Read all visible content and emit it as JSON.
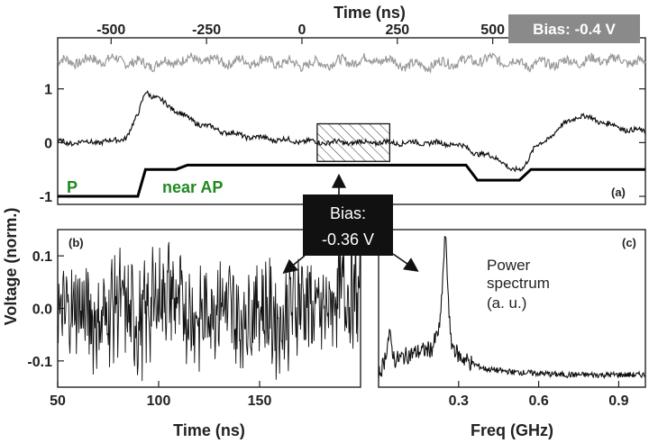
{
  "chart_data": [
    {
      "panel": "(a)",
      "type": "line",
      "xlabel": "Time (ns)",
      "ylabel": "Voltage (norm.)",
      "xlim": [
        -640,
        900
      ],
      "ylim": [
        -1.15,
        1.95
      ],
      "x_ticks": [
        -500,
        -250,
        0,
        250,
        500
      ],
      "y_ticks": [
        1,
        0,
        -1
      ],
      "badge": "Bias: -0.4 V",
      "badge_color": "#8a8a8a",
      "labels": {
        "p": "P",
        "near_ap": "near AP",
        "color": "#1f8a1f"
      },
      "series": [
        {
          "color": "#999999",
          "x": [
            -640,
            -500,
            -400,
            -300,
            -200,
            -100,
            0,
            100,
            200,
            300,
            400,
            500,
            600,
            700,
            800,
            900
          ],
          "y": [
            1.5,
            1.55,
            1.45,
            1.55,
            1.5,
            1.52,
            1.45,
            1.5,
            1.55,
            1.42,
            1.5,
            1.55,
            1.45,
            1.5,
            1.55,
            1.48
          ]
        },
        {
          "color": "#111111",
          "x": [
            -640,
            -500,
            -460,
            -430,
            -410,
            -390,
            -350,
            -300,
            -250,
            -200,
            -150,
            -100,
            -50,
            0,
            100,
            200,
            300,
            400,
            430,
            460,
            490,
            520,
            550,
            580,
            610,
            640,
            680,
            720,
            760,
            800,
            850,
            900
          ],
          "y": [
            0,
            0.02,
            0.1,
            0.5,
            0.98,
            0.85,
            0.7,
            0.45,
            0.3,
            0.2,
            0.12,
            0.08,
            0.05,
            0.02,
            0,
            0,
            0,
            -0.02,
            -0.1,
            -0.2,
            -0.25,
            -0.3,
            -0.55,
            -0.45,
            -0.1,
            0.05,
            0.3,
            0.5,
            0.45,
            0.35,
            0.25,
            0.2
          ]
        },
        {
          "color": "#000000",
          "step": true,
          "x": [
            -640,
            -430,
            -410,
            -330,
            -300,
            430,
            460,
            570,
            600,
            900
          ],
          "y": [
            -1.0,
            -1.0,
            -0.5,
            -0.5,
            -0.42,
            -0.42,
            -0.7,
            -0.7,
            -0.5,
            -0.5
          ]
        }
      ],
      "box_x": [
        40,
        230
      ],
      "box_y": [
        -0.35,
        0.35
      ]
    },
    {
      "panel": "(b)",
      "type": "line",
      "xlabel": "Time (ns)",
      "xlim": [
        50,
        200
      ],
      "ylim": [
        -0.15,
        0.15
      ],
      "x_ticks": [
        50,
        100,
        150
      ],
      "y_ticks": [
        0.1,
        0.0,
        -0.1
      ],
      "y_ticklabels": [
        "0.1",
        "0.0",
        "-0.1"
      ],
      "series": [
        {
          "color": "#111111",
          "x": [
            50,
            60,
            70,
            80,
            90,
            100,
            105,
            110,
            120,
            130,
            140,
            150,
            160,
            170,
            180,
            190,
            200
          ],
          "y": [
            -0.05,
            0.02,
            -0.08,
            0.05,
            -0.1,
            0.08,
            0.1,
            0.02,
            -0.06,
            0.06,
            -0.08,
            0.04,
            -0.09,
            0.07,
            -0.05,
            0.1,
            0.06
          ]
        }
      ]
    },
    {
      "panel": "(c)",
      "type": "line",
      "xlabel": "Freq (GHz)",
      "xlim": [
        0,
        1.0
      ],
      "x_ticks": [
        0.3,
        0.6,
        0.9
      ],
      "x_ticklabels": [
        "0.3",
        "0.6",
        "0.9"
      ],
      "annotation": [
        "Power",
        "spectrum",
        "(a. u.)"
      ],
      "series": [
        {
          "color": "#111111",
          "x": [
            0.0,
            0.02,
            0.04,
            0.06,
            0.1,
            0.15,
            0.2,
            0.23,
            0.25,
            0.27,
            0.3,
            0.35,
            0.4,
            0.5,
            0.6,
            0.7,
            0.8,
            0.9,
            1.0
          ],
          "y": [
            0.02,
            0.1,
            0.3,
            0.12,
            0.15,
            0.18,
            0.2,
            0.35,
            1.0,
            0.25,
            0.15,
            0.1,
            0.06,
            0.04,
            0.03,
            0.02,
            0.02,
            0.02,
            0.02
          ]
        }
      ]
    }
  ],
  "callout": {
    "line1": "Bias:",
    "line2": "-0.36 V"
  }
}
